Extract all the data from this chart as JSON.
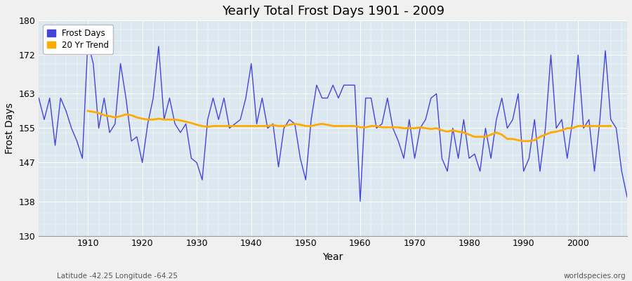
{
  "title": "Yearly Total Frost Days 1901 - 2009",
  "xlabel": "Year",
  "ylabel": "Frost Days",
  "xlim": [
    1901,
    2009
  ],
  "ylim": [
    130,
    180
  ],
  "yticks": [
    130,
    138,
    147,
    155,
    163,
    172,
    180
  ],
  "xticks": [
    1910,
    1920,
    1930,
    1940,
    1950,
    1960,
    1970,
    1980,
    1990,
    2000
  ],
  "outer_bg": "#f0f0f0",
  "plot_bg_color": "#dce8f0",
  "line_color": "#4444dd",
  "trend_color": "#ffaa00",
  "footer_left": "Latitude -42.25 Longitude -64.25",
  "footer_right": "worldspecies.org",
  "legend_labels": [
    "Frost Days",
    "20 Yr Trend"
  ],
  "years": [
    1901,
    1902,
    1903,
    1904,
    1905,
    1906,
    1907,
    1908,
    1909,
    1910,
    1911,
    1912,
    1913,
    1914,
    1915,
    1916,
    1917,
    1918,
    1919,
    1920,
    1921,
    1922,
    1923,
    1924,
    1925,
    1926,
    1927,
    1928,
    1929,
    1930,
    1931,
    1932,
    1933,
    1934,
    1935,
    1936,
    1937,
    1938,
    1939,
    1940,
    1941,
    1942,
    1943,
    1944,
    1945,
    1946,
    1947,
    1948,
    1949,
    1950,
    1951,
    1952,
    1953,
    1954,
    1955,
    1956,
    1957,
    1958,
    1959,
    1960,
    1961,
    1962,
    1963,
    1964,
    1965,
    1966,
    1967,
    1968,
    1969,
    1970,
    1971,
    1972,
    1973,
    1974,
    1975,
    1976,
    1977,
    1978,
    1979,
    1980,
    1981,
    1982,
    1983,
    1984,
    1985,
    1986,
    1987,
    1988,
    1989,
    1990,
    1991,
    1992,
    1993,
    1994,
    1995,
    1996,
    1997,
    1998,
    1999,
    2000,
    2001,
    2002,
    2003,
    2004,
    2005,
    2006,
    2007,
    2008,
    2009
  ],
  "frost_days": [
    162,
    157,
    162,
    151,
    162,
    159,
    155,
    152,
    148,
    175,
    170,
    155,
    162,
    154,
    156,
    170,
    162,
    152,
    153,
    147,
    156,
    162,
    174,
    157,
    162,
    156,
    154,
    156,
    148,
    147,
    143,
    157,
    162,
    157,
    162,
    155,
    156,
    157,
    162,
    170,
    156,
    162,
    155,
    156,
    146,
    155,
    157,
    156,
    148,
    143,
    157,
    165,
    162,
    162,
    165,
    162,
    165,
    165,
    165,
    138,
    162,
    162,
    155,
    156,
    162,
    155,
    152,
    148,
    157,
    148,
    155,
    157,
    162,
    163,
    148,
    145,
    155,
    148,
    157,
    148,
    149,
    145,
    155,
    148,
    157,
    162,
    155,
    157,
    163,
    145,
    148,
    157,
    145,
    155,
    172,
    155,
    157,
    148,
    157,
    172,
    155,
    157,
    145,
    157,
    173,
    157,
    155,
    145,
    139
  ],
  "trend_days": [
    null,
    null,
    null,
    null,
    null,
    null,
    null,
    null,
    null,
    159.0,
    158.8,
    158.5,
    158.0,
    157.8,
    157.5,
    157.8,
    158.2,
    158.0,
    157.5,
    157.2,
    157.0,
    157.0,
    157.2,
    157.0,
    157.0,
    157.0,
    156.8,
    156.5,
    156.2,
    155.8,
    155.5,
    155.3,
    155.5,
    155.5,
    155.5,
    155.5,
    155.5,
    155.5,
    155.5,
    155.5,
    155.5,
    155.5,
    155.5,
    155.7,
    155.5,
    155.5,
    155.8,
    156.0,
    155.8,
    155.5,
    155.5,
    155.8,
    156.0,
    155.8,
    155.5,
    155.5,
    155.5,
    155.5,
    155.5,
    155.2,
    155.2,
    155.5,
    155.5,
    155.2,
    155.2,
    155.2,
    155.2,
    155.0,
    155.0,
    155.0,
    155.2,
    155.0,
    154.8,
    155.0,
    154.5,
    154.2,
    154.5,
    154.2,
    154.0,
    153.5,
    153.0,
    153.0,
    153.0,
    153.5,
    154.0,
    153.5,
    152.5,
    152.5,
    152.2,
    152.0,
    152.0,
    152.2,
    153.0,
    153.5,
    154.0,
    154.2,
    154.5,
    155.0,
    155.0,
    155.5,
    155.5,
    155.5,
    155.5,
    155.5,
    155.5,
    155.5,
    null
  ]
}
